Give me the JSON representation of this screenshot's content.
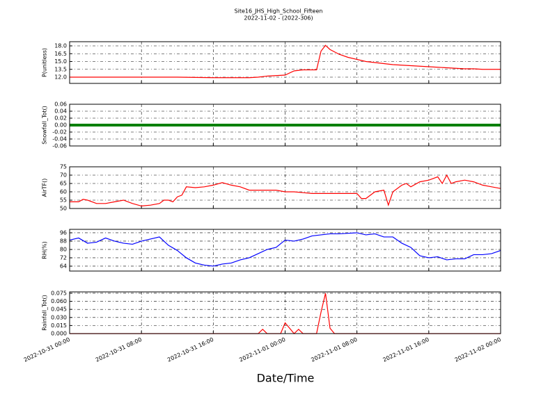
{
  "chart_data": [
    {
      "type": "line",
      "title": "Site16_JHS_High_School_Fifteen",
      "subtitle": "2022-11-02 - (2022-306)",
      "ylabel": "P(unitless)",
      "color": "#ff0000",
      "xlim": [
        "2022-10-31 00:00",
        "2022-11-02 00:00"
      ],
      "xticks": [
        "2022-10-31 00:00",
        "2022-10-31 08:00",
        "2022-10-31 16:00",
        "2022-11-01 00:00",
        "2022-11-01 08:00",
        "2022-11-01 16:00",
        "2022-11-02 00:00"
      ],
      "ylim": [
        10.8,
        18.8
      ],
      "yticks": [
        {
          "value": 12,
          "label": "12.0"
        },
        13.5,
        {
          "value": 15,
          "label": "15.0"
        },
        16.5,
        {
          "value": 18,
          "label": "18.0"
        }
      ],
      "grid": true,
      "x": [
        "2022-10-31 00:00",
        "2022-10-31 02:00",
        "2022-10-31 04:00",
        "2022-10-31 06:00",
        "2022-10-31 08:00",
        "2022-10-31 10:00",
        "2022-10-31 12:00",
        "2022-10-31 14:00",
        "2022-10-31 16:00",
        "2022-10-31 18:00",
        "2022-10-31 20:00",
        "2022-10-31 21:00",
        "2022-10-31 22:00",
        "2022-10-31 23:00",
        "2022-11-01 00:00",
        "2022-11-01 01:00",
        "2022-11-01 02:00",
        "2022-11-01 03:00",
        "2022-11-01 03:30",
        "2022-11-01 04:00",
        "2022-11-01 04:30",
        "2022-11-01 05:00",
        "2022-11-01 06:00",
        "2022-11-01 07:00",
        "2022-11-01 08:00",
        "2022-11-01 09:00",
        "2022-11-01 10:00",
        "2022-11-01 11:00",
        "2022-11-01 12:00",
        "2022-11-01 13:00",
        "2022-11-01 14:00",
        "2022-11-01 15:00",
        "2022-11-01 16:00",
        "2022-11-01 17:00",
        "2022-11-01 18:00",
        "2022-11-01 19:00",
        "2022-11-01 20:00",
        "2022-11-01 21:00",
        "2022-11-01 22:00",
        "2022-11-01 23:00",
        "2022-11-02 00:00"
      ],
      "values": [
        12.0,
        12.0,
        12.0,
        12.0,
        12.0,
        12.0,
        12.0,
        11.95,
        11.9,
        11.9,
        11.9,
        12.0,
        12.2,
        12.3,
        12.4,
        13.2,
        13.4,
        13.4,
        13.4,
        17.0,
        18.1,
        17.3,
        16.4,
        15.8,
        15.4,
        15.0,
        14.8,
        14.6,
        14.4,
        14.3,
        14.2,
        14.1,
        14.0,
        13.9,
        13.8,
        13.7,
        13.6,
        13.6,
        13.5,
        13.5,
        13.5
      ]
    },
    {
      "type": "line",
      "ylabel": "Snowfall_Tot()",
      "color": "#008000",
      "xlim": [
        "2022-10-31 00:00",
        "2022-11-02 00:00"
      ],
      "xticks": [
        "2022-10-31 00:00",
        "2022-10-31 08:00",
        "2022-10-31 16:00",
        "2022-11-01 00:00",
        "2022-11-01 08:00",
        "2022-11-01 16:00",
        "2022-11-02 00:00"
      ],
      "ylim": [
        -0.06,
        0.06
      ],
      "yticks": [
        -0.06,
        -0.04,
        -0.02,
        {
          "value": 0,
          "label": "0.00"
        },
        0.02,
        0.04,
        0.06
      ],
      "grid": true,
      "x": [
        "2022-10-31 00:00",
        "2022-10-31 04:00",
        "2022-10-31 08:00",
        "2022-10-31 12:00",
        "2022-10-31 16:00",
        "2022-10-31 20:00",
        "2022-11-01 00:00",
        "2022-11-01 04:00",
        "2022-11-01 08:00",
        "2022-11-01 12:00",
        "2022-11-01 16:00",
        "2022-11-01 20:00",
        "2022-11-02 00:00"
      ],
      "values": [
        0,
        0,
        0,
        0,
        0,
        0,
        0,
        0,
        0,
        0,
        0,
        0,
        0
      ]
    },
    {
      "type": "line",
      "ylabel": "AirTF()",
      "color": "#ff0000",
      "xlim": [
        "2022-10-31 00:00",
        "2022-11-02 00:00"
      ],
      "xticks": [
        "2022-10-31 00:00",
        "2022-10-31 08:00",
        "2022-10-31 16:00",
        "2022-11-01 00:00",
        "2022-11-01 08:00",
        "2022-11-01 16:00",
        "2022-11-02 00:00"
      ],
      "ylim": [
        50,
        75
      ],
      "yticks": [
        50,
        55,
        60,
        65,
        70,
        75
      ],
      "grid": true,
      "x": [
        "2022-10-31 00:00",
        "2022-10-31 01:00",
        "2022-10-31 01:30",
        "2022-10-31 02:00",
        "2022-10-31 03:00",
        "2022-10-31 04:00",
        "2022-10-31 05:00",
        "2022-10-31 06:00",
        "2022-10-31 07:00",
        "2022-10-31 08:00",
        "2022-10-31 09:00",
        "2022-10-31 10:00",
        "2022-10-31 10:30",
        "2022-10-31 11:00",
        "2022-10-31 11:30",
        "2022-10-31 12:00",
        "2022-10-31 12:30",
        "2022-10-31 13:00",
        "2022-10-31 14:00",
        "2022-10-31 15:00",
        "2022-10-31 16:00",
        "2022-10-31 17:00",
        "2022-10-31 18:00",
        "2022-10-31 19:00",
        "2022-10-31 20:00",
        "2022-10-31 21:00",
        "2022-10-31 22:00",
        "2022-10-31 23:00",
        "2022-11-01 00:00",
        "2022-11-01 01:00",
        "2022-11-01 02:00",
        "2022-11-01 03:00",
        "2022-11-01 04:00",
        "2022-11-01 05:00",
        "2022-11-01 06:00",
        "2022-11-01 07:00",
        "2022-11-01 08:00",
        "2022-11-01 08:30",
        "2022-11-01 09:00",
        "2022-11-01 10:00",
        "2022-11-01 11:00",
        "2022-11-01 11:30",
        "2022-11-01 12:00",
        "2022-11-01 13:00",
        "2022-11-01 13:30",
        "2022-11-01 14:00",
        "2022-11-01 15:00",
        "2022-11-01 16:00",
        "2022-11-01 17:00",
        "2022-11-01 17:30",
        "2022-11-01 18:00",
        "2022-11-01 18:30",
        "2022-11-01 19:00",
        "2022-11-01 20:00",
        "2022-11-01 21:00",
        "2022-11-01 22:00",
        "2022-11-01 23:00",
        "2022-11-02 00:00"
      ],
      "values": [
        54,
        54,
        55.5,
        55,
        53,
        53,
        54,
        55,
        53,
        51.5,
        52,
        53,
        55,
        55,
        54,
        57,
        58,
        63,
        62.5,
        63,
        64,
        65.5,
        64,
        63,
        61,
        61,
        61,
        61,
        60,
        60,
        59.5,
        59,
        59,
        59,
        59,
        59,
        59,
        56,
        56,
        60,
        61,
        52,
        60,
        64,
        65,
        63,
        66,
        67,
        69,
        65,
        70,
        65,
        66,
        67,
        66,
        64,
        63,
        62
      ]
    },
    {
      "type": "line",
      "ylabel": "RH(%)",
      "color": "#0000ff",
      "xlim": [
        "2022-10-31 00:00",
        "2022-11-02 00:00"
      ],
      "xticks": [
        "2022-10-31 00:00",
        "2022-10-31 08:00",
        "2022-10-31 16:00",
        "2022-11-01 00:00",
        "2022-11-01 08:00",
        "2022-11-01 16:00",
        "2022-11-02 00:00"
      ],
      "ylim": [
        59.3,
        99.3
      ],
      "yticks": [
        64,
        72,
        80,
        88,
        96
      ],
      "grid": true,
      "x": [
        "2022-10-31 00:00",
        "2022-10-31 01:00",
        "2022-10-31 02:00",
        "2022-10-31 03:00",
        "2022-10-31 04:00",
        "2022-10-31 05:00",
        "2022-10-31 06:00",
        "2022-10-31 07:00",
        "2022-10-31 08:00",
        "2022-10-31 09:00",
        "2022-10-31 10:00",
        "2022-10-31 11:00",
        "2022-10-31 12:00",
        "2022-10-31 13:00",
        "2022-10-31 14:00",
        "2022-10-31 15:00",
        "2022-10-31 16:00",
        "2022-10-31 17:00",
        "2022-10-31 18:00",
        "2022-10-31 19:00",
        "2022-10-31 20:00",
        "2022-10-31 21:00",
        "2022-10-31 22:00",
        "2022-10-31 23:00",
        "2022-11-01 00:00",
        "2022-11-01 01:00",
        "2022-11-01 02:00",
        "2022-11-01 03:00",
        "2022-11-01 04:00",
        "2022-11-01 05:00",
        "2022-11-01 06:00",
        "2022-11-01 07:00",
        "2022-11-01 08:00",
        "2022-11-01 09:00",
        "2022-11-01 10:00",
        "2022-11-01 11:00",
        "2022-11-01 12:00",
        "2022-11-01 13:00",
        "2022-11-01 14:00",
        "2022-11-01 15:00",
        "2022-11-01 16:00",
        "2022-11-01 17:00",
        "2022-11-01 18:00",
        "2022-11-01 19:00",
        "2022-11-01 20:00",
        "2022-11-01 21:00",
        "2022-11-01 22:00",
        "2022-11-01 23:00",
        "2022-11-02 00:00"
      ],
      "values": [
        89,
        91,
        86,
        87,
        91,
        88,
        86,
        85,
        88,
        90,
        92,
        84,
        79,
        72,
        67,
        65,
        64,
        66,
        67,
        70,
        72,
        76,
        80,
        82,
        89,
        88,
        90,
        93,
        94,
        95,
        95,
        95.5,
        96,
        94,
        95,
        92,
        92,
        86,
        82,
        74,
        72,
        73,
        70,
        71,
        71,
        75,
        75,
        76,
        79
      ]
    },
    {
      "type": "line",
      "ylabel": "Rainfall_Tot()",
      "xlabel": "Date/Time",
      "color": "#ff0000",
      "xlim": [
        "2022-10-31 00:00",
        "2022-11-02 00:00"
      ],
      "xticks": [
        "2022-10-31 00:00",
        "2022-10-31 08:00",
        "2022-10-31 16:00",
        "2022-11-01 00:00",
        "2022-11-01 08:00",
        "2022-11-01 16:00",
        "2022-11-02 00:00"
      ],
      "ylim": [
        0,
        0.0775
      ],
      "yticks": [
        {
          "value": 0,
          "label": "0.000"
        },
        0.015,
        {
          "value": 0.03,
          "label": "0.030"
        },
        0.045,
        {
          "value": 0.06,
          "label": "0.060"
        },
        0.075
      ],
      "grid": true,
      "x": [
        "2022-10-31 00:00",
        "2022-10-31 21:00",
        "2022-10-31 21:30",
        "2022-10-31 22:00",
        "2022-10-31 23:30",
        "2022-11-01 00:00",
        "2022-11-01 00:30",
        "2022-11-01 01:00",
        "2022-11-01 01:30",
        "2022-11-01 02:00",
        "2022-11-01 03:30",
        "2022-11-01 04:00",
        "2022-11-01 04:30",
        "2022-11-01 05:00",
        "2022-11-01 05:30",
        "2022-11-02 00:00"
      ],
      "values": [
        0,
        0,
        0.008,
        0,
        0,
        0.02,
        0.01,
        0,
        0.008,
        0,
        0,
        0.04,
        0.075,
        0.01,
        0,
        0
      ]
    }
  ]
}
